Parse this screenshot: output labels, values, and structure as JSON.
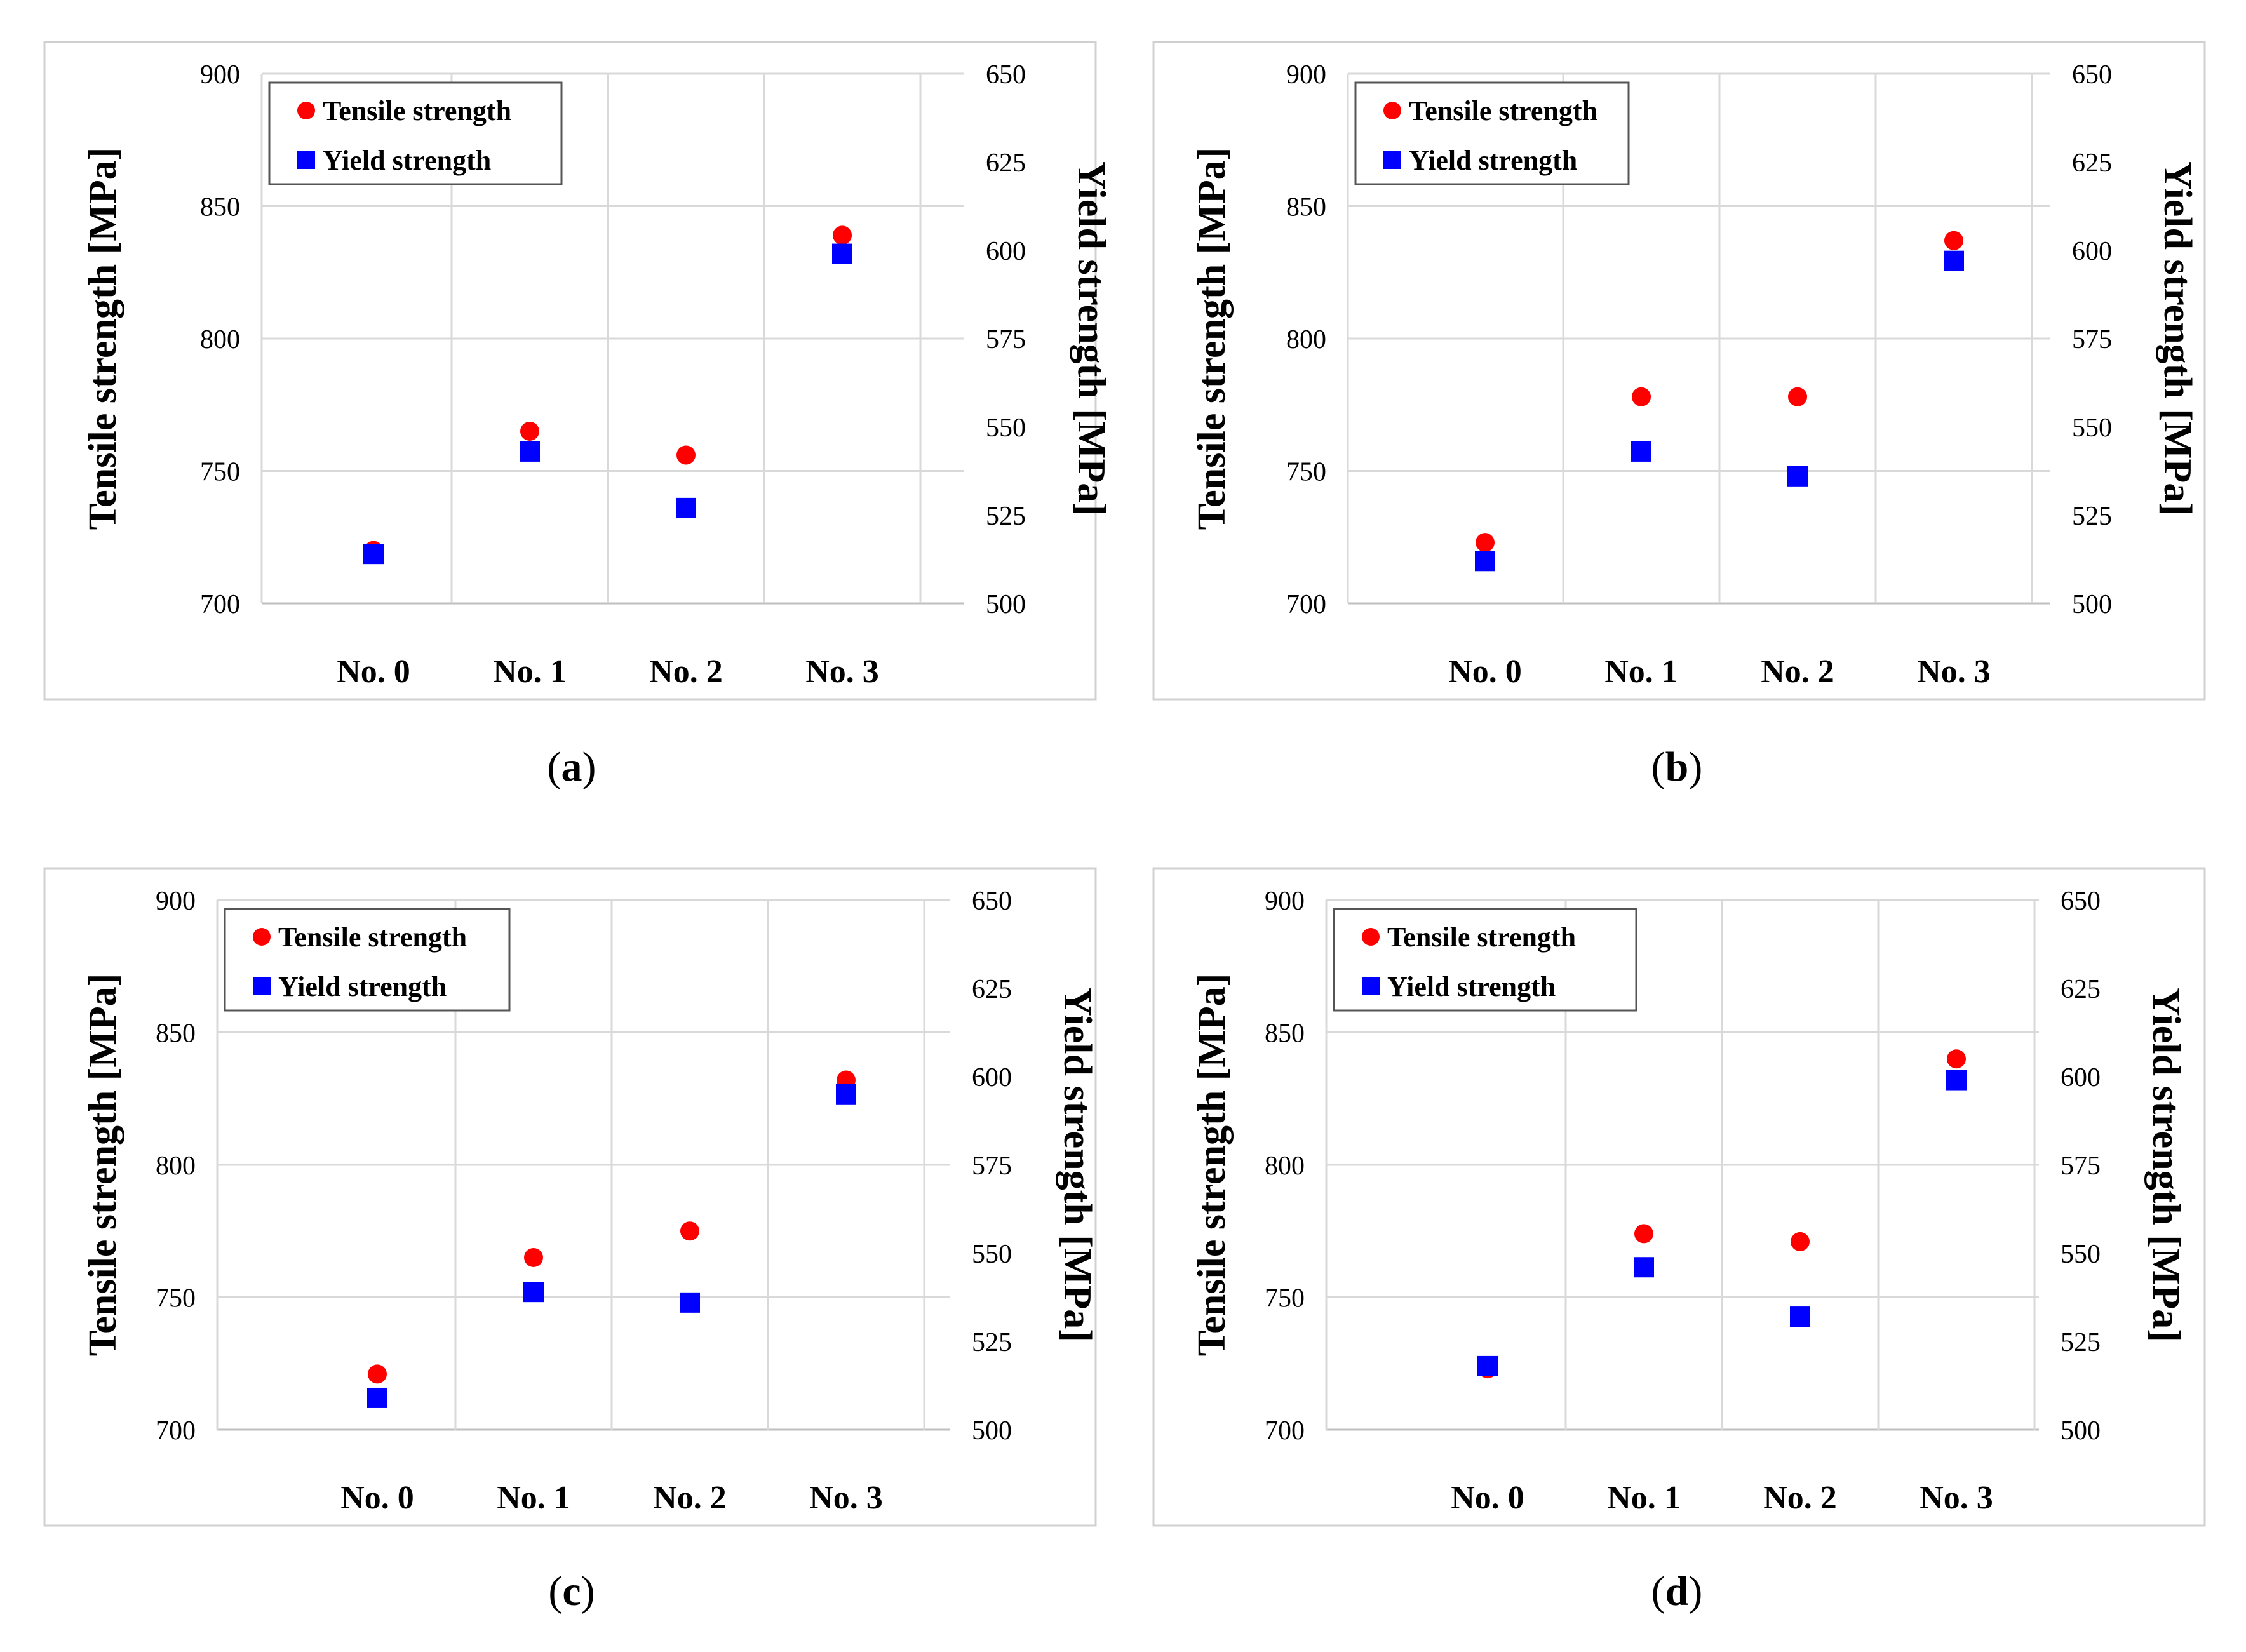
{
  "figure": {
    "captions": [
      "a",
      "b",
      "c",
      "d"
    ]
  },
  "colors": {
    "tensile": "#ff0000",
    "yield": "#0000ff",
    "grid": "#d9d9d9",
    "axis": "#bfbfbf",
    "frame": "#d0d0d0"
  },
  "chart_data": [
    {
      "type": "scatter",
      "panel": "a",
      "categories": [
        "No. 0",
        "No. 1",
        "No. 2",
        "No. 3"
      ],
      "series": [
        {
          "name": "Tensile strength",
          "axis": "left",
          "marker": "circle",
          "values": [
            720,
            765,
            756,
            839
          ]
        },
        {
          "name": "Yield strength",
          "axis": "right",
          "marker": "square",
          "values": [
            514,
            543,
            527,
            599
          ]
        }
      ],
      "ylabel": "Tensile strength [MPa]",
      "y2label": "Yield strength [MPa]",
      "ylim": [
        700,
        900
      ],
      "y_ticks": [
        700,
        750,
        800,
        850,
        900
      ],
      "y2lim": [
        500,
        650
      ],
      "y2_ticks": [
        500,
        525,
        550,
        575,
        600,
        625,
        650
      ],
      "grid": true,
      "legend": "top-left"
    },
    {
      "type": "scatter",
      "panel": "b",
      "categories": [
        "No. 0",
        "No. 1",
        "No. 2",
        "No. 3"
      ],
      "series": [
        {
          "name": "Tensile strength",
          "axis": "left",
          "marker": "circle",
          "values": [
            723,
            778,
            778,
            837
          ]
        },
        {
          "name": "Yield strength",
          "axis": "right",
          "marker": "square",
          "values": [
            512,
            543,
            536,
            597
          ]
        }
      ],
      "ylabel": "Tensile strength [MPa]",
      "y2label": "Yield strength [MPa]",
      "ylim": [
        700,
        900
      ],
      "y_ticks": [
        700,
        750,
        800,
        850,
        900
      ],
      "y2lim": [
        500,
        650
      ],
      "y2_ticks": [
        500,
        525,
        550,
        575,
        600,
        625,
        650
      ],
      "grid": true,
      "legend": "top-left"
    },
    {
      "type": "scatter",
      "panel": "c",
      "categories": [
        "No. 0",
        "No. 1",
        "No. 2",
        "No. 3"
      ],
      "series": [
        {
          "name": "Tensile strength",
          "axis": "left",
          "marker": "circle",
          "values": [
            721,
            765,
            775,
            832
          ]
        },
        {
          "name": "Yield strength",
          "axis": "right",
          "marker": "square",
          "values": [
            509,
            539,
            536,
            595
          ]
        }
      ],
      "ylabel": "Tensile strength [MPa]",
      "y2label": "Yield strength [MPa]",
      "ylim": [
        700,
        900
      ],
      "y_ticks": [
        700,
        750,
        800,
        850,
        900
      ],
      "y2lim": [
        500,
        650
      ],
      "y2_ticks": [
        500,
        525,
        550,
        575,
        600,
        625,
        650
      ],
      "grid": true,
      "legend": "top-left"
    },
    {
      "type": "scatter",
      "panel": "d",
      "categories": [
        "No. 0",
        "No. 1",
        "No. 2",
        "No. 3"
      ],
      "series": [
        {
          "name": "Tensile strength",
          "axis": "left",
          "marker": "circle",
          "values": [
            723,
            774,
            771,
            840
          ]
        },
        {
          "name": "Yield strength",
          "axis": "right",
          "marker": "square",
          "values": [
            518,
            546,
            532,
            599
          ]
        }
      ],
      "ylabel": "Tensile strength [MPa]",
      "y2label": "Yield strength [MPa]",
      "ylim": [
        700,
        900
      ],
      "y_ticks": [
        700,
        750,
        800,
        850,
        900
      ],
      "y2lim": [
        500,
        650
      ],
      "y2_ticks": [
        500,
        525,
        550,
        575,
        600,
        625,
        650
      ],
      "grid": true,
      "legend": "top-left"
    }
  ]
}
